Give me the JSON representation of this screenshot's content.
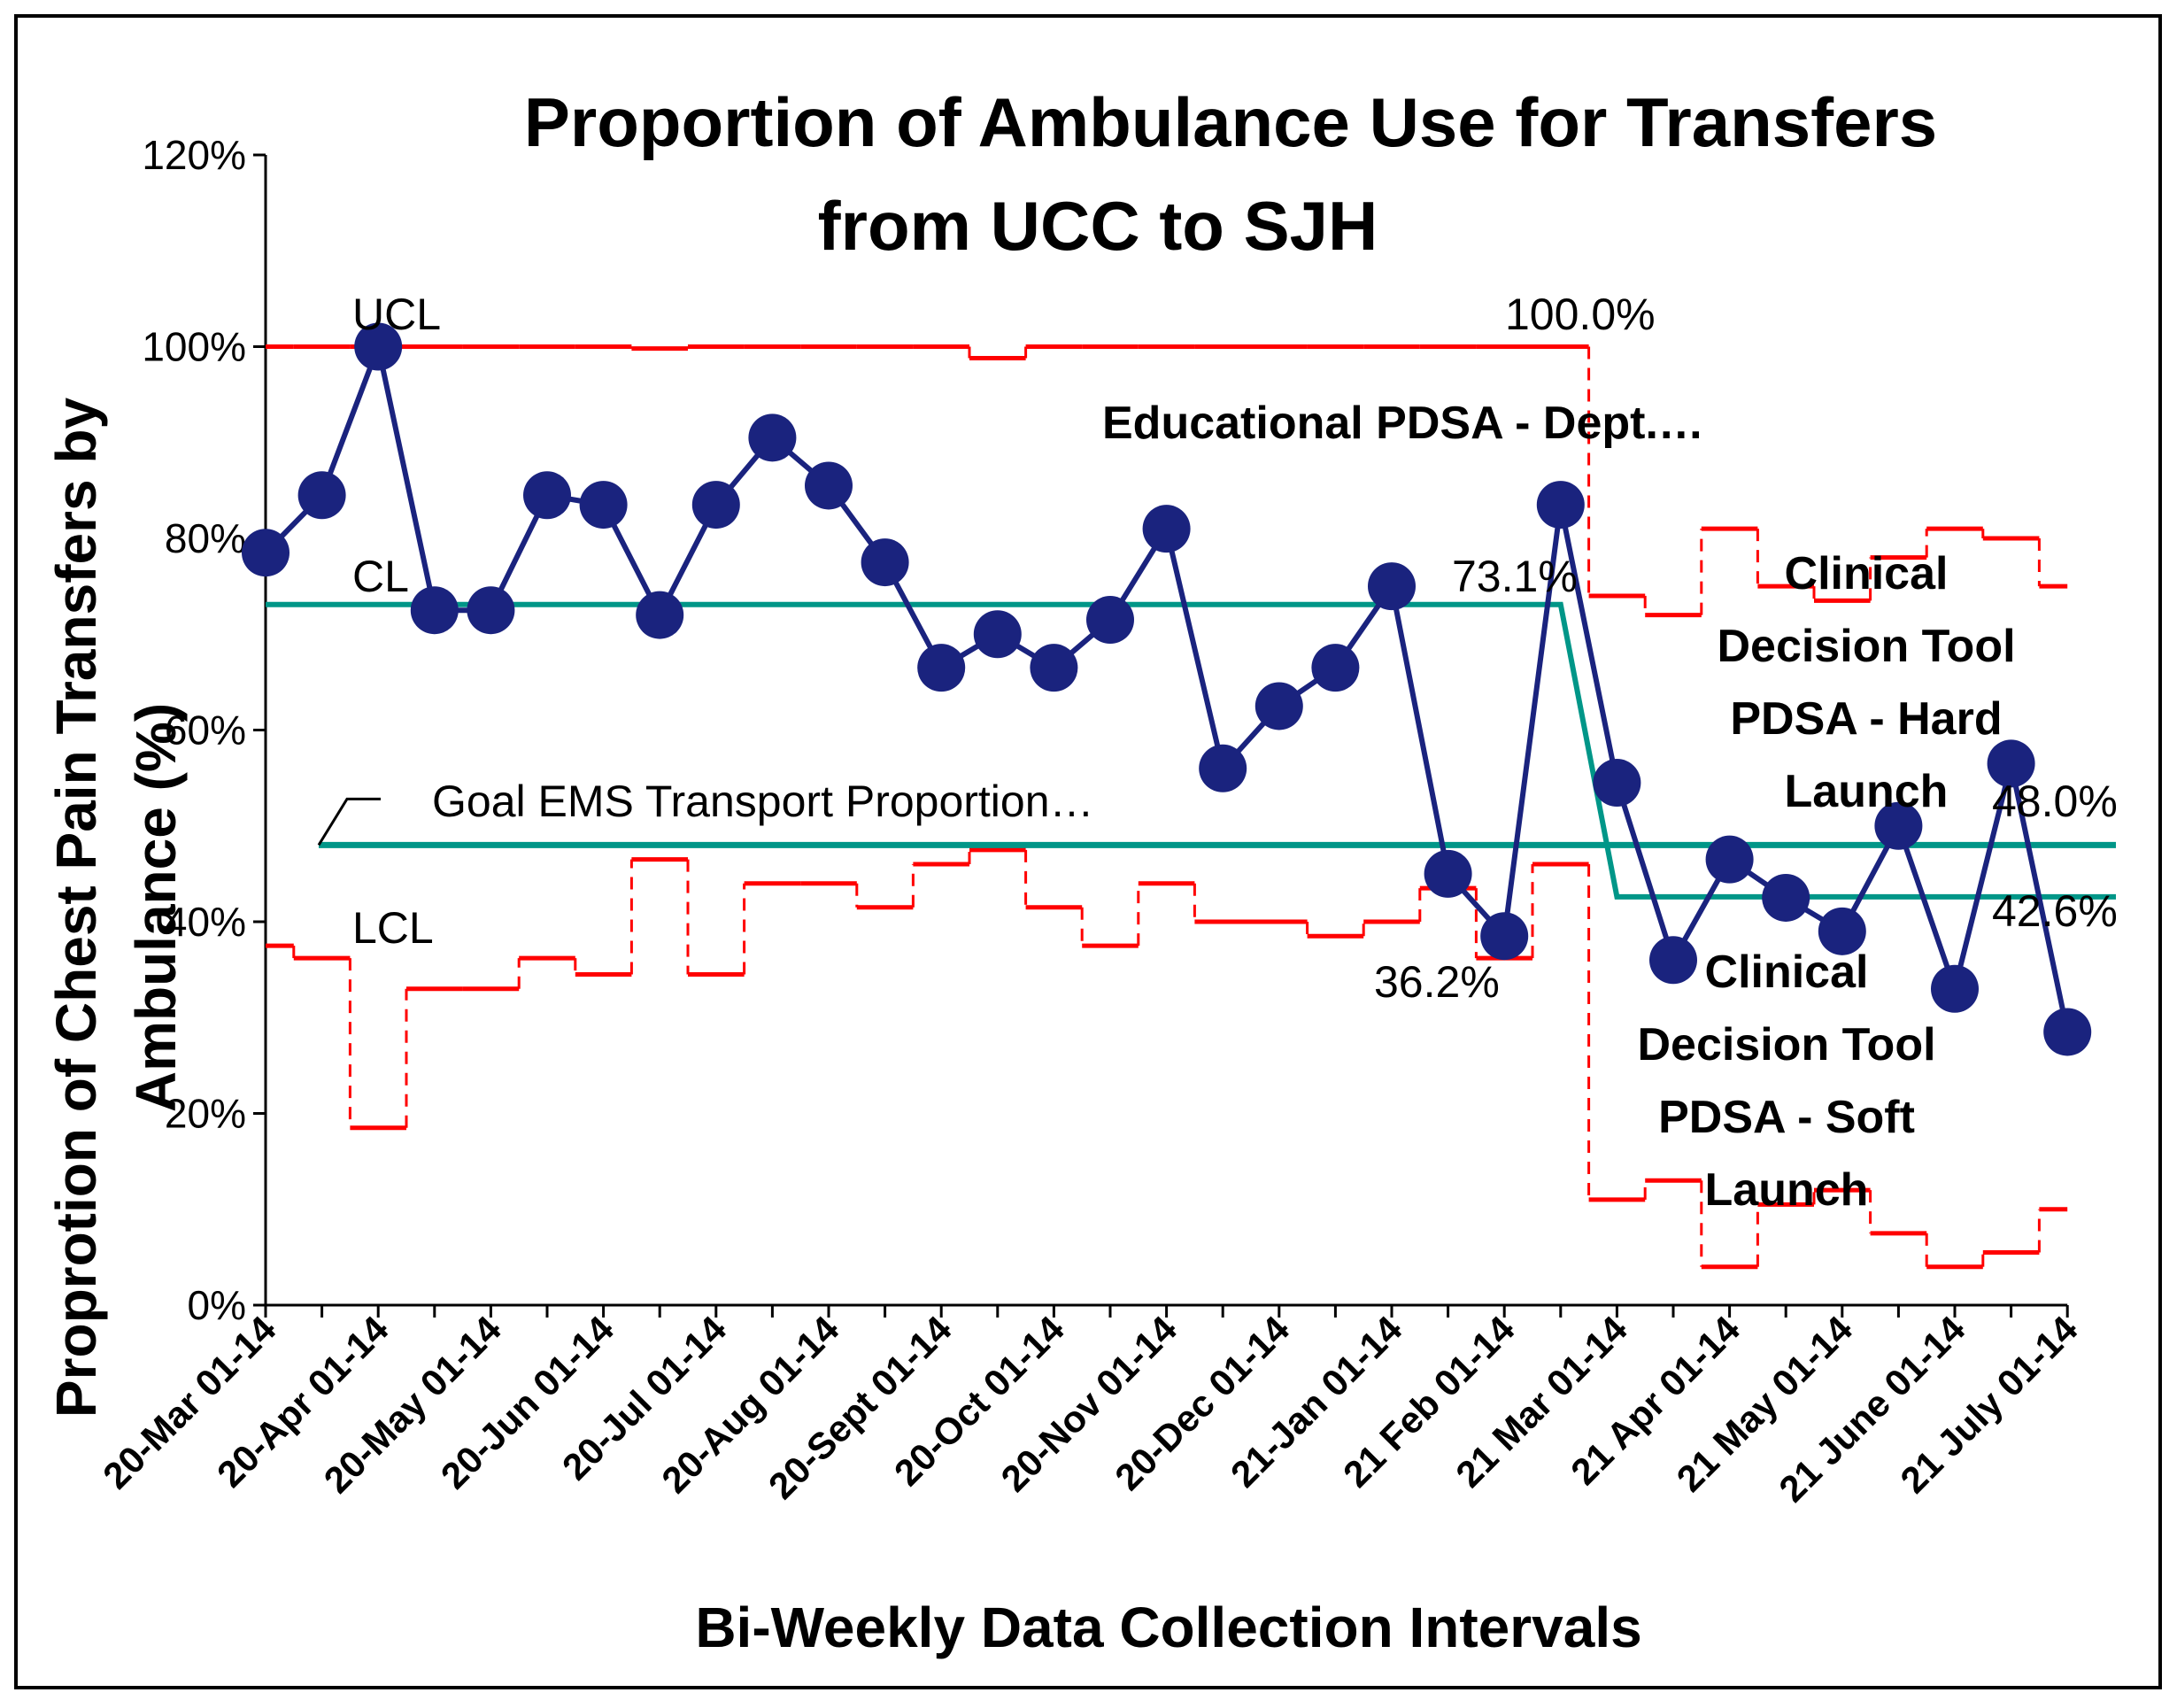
{
  "chart_data": {
    "type": "line",
    "title": "Proportion of Ambulance Use for Transfers from UCC to SJH",
    "title_lines": [
      "Proportion of Ambulance Use for Transfers",
      "from UCC to SJH"
    ],
    "xlabel": "Bi-Weekly Data Collection Intervals",
    "ylabel": "Proprotion of Chest Pain Transfers by Ambulance (%)",
    "ylabel_lines": [
      "Proprotion of Chest Pain Transfers by",
      "Ambulance (%)"
    ],
    "ylim": [
      0,
      120
    ],
    "yticks": [
      0,
      20,
      40,
      60,
      80,
      100,
      120
    ],
    "ytick_labels": [
      "0%",
      "20%",
      "40%",
      "60%",
      "80%",
      "100%",
      "120%"
    ],
    "x_tick_labels": [
      "20-Mar 01-14",
      "20-Apr 01-14",
      "20-May 01-14",
      "20-Jun 01-14",
      "20-Jul 01-14",
      "20-Aug 01-14",
      "20-Sept 01-14",
      "20-Oct 01-14",
      "20-Nov 01-14",
      "20-Dec 01-14",
      "21-Jan 01-14",
      "21 Feb 01-14",
      "21 Mar 01-14",
      "21 Apr 01-14",
      "21 May 01-14",
      "21 June 01-14",
      "21 July 01-14"
    ],
    "series": [
      {
        "name": "Proportion",
        "color": "#1a237e",
        "values": [
          78.5,
          84.5,
          100,
          72.5,
          72.5,
          84.5,
          83.5,
          72,
          83.5,
          90.5,
          85.5,
          77.5,
          66.5,
          70,
          66.5,
          71.5,
          81,
          56,
          62.5,
          66.5,
          75,
          45,
          38.5,
          83.5,
          54.5,
          36,
          46.5,
          42.5,
          39,
          50,
          33,
          56.5,
          28.5
        ]
      },
      {
        "name": "UCL",
        "color": "#ff0000",
        "values": [
          100,
          100,
          100,
          100,
          100,
          100,
          100,
          99.8,
          100,
          100,
          100,
          100,
          100,
          98.8,
          100,
          100,
          100,
          100,
          100,
          100,
          100,
          100,
          100,
          100,
          74,
          72,
          81,
          75,
          73.5,
          78,
          81,
          80,
          75
        ]
      },
      {
        "name": "CL",
        "color": "#009688",
        "values": [
          73.1,
          73.1,
          73.1,
          73.1,
          73.1,
          73.1,
          73.1,
          73.1,
          73.1,
          73.1,
          73.1,
          73.1,
          73.1,
          73.1,
          73.1,
          73.1,
          73.1,
          73.1,
          73.1,
          73.1,
          73.1,
          73.1,
          73.1,
          73.1,
          42.6,
          42.6,
          42.6,
          42.6,
          42.6,
          42.6,
          42.6,
          42.6,
          42.6
        ]
      },
      {
        "name": "LCL",
        "color": "#ff0000",
        "values": [
          37.5,
          36.2,
          18.5,
          33,
          33,
          36.2,
          34.5,
          46.5,
          34.5,
          44,
          44,
          41.5,
          46,
          47.5,
          41.5,
          37.5,
          44,
          40,
          40,
          38.5,
          40,
          43.5,
          36.2,
          46,
          11,
          13,
          4,
          10.5,
          12,
          7.5,
          4,
          5.5,
          10
        ]
      },
      {
        "name": "Goal EMS Transport Proportion",
        "color": "#009688",
        "value": 48.0
      }
    ],
    "labels": {
      "ucl": "UCL",
      "cl": "CL",
      "lcl": "LCL",
      "goal": "Goal EMS Transport Proportion…",
      "ucl_value": "100.0%",
      "cl_value": "73.1%",
      "lcl_value": "36.2%",
      "goal_value": "48.0%",
      "cl2_value": "42.6%"
    },
    "annotations": {
      "educational": "Educational PDSA - Dept.…",
      "hard_launch": [
        "Clinical",
        "Decision Tool",
        "PDSA - Hard",
        "Launch"
      ],
      "soft_launch": [
        "Clinical",
        "Decision Tool",
        "PDSA - Soft",
        "Launch"
      ]
    }
  }
}
